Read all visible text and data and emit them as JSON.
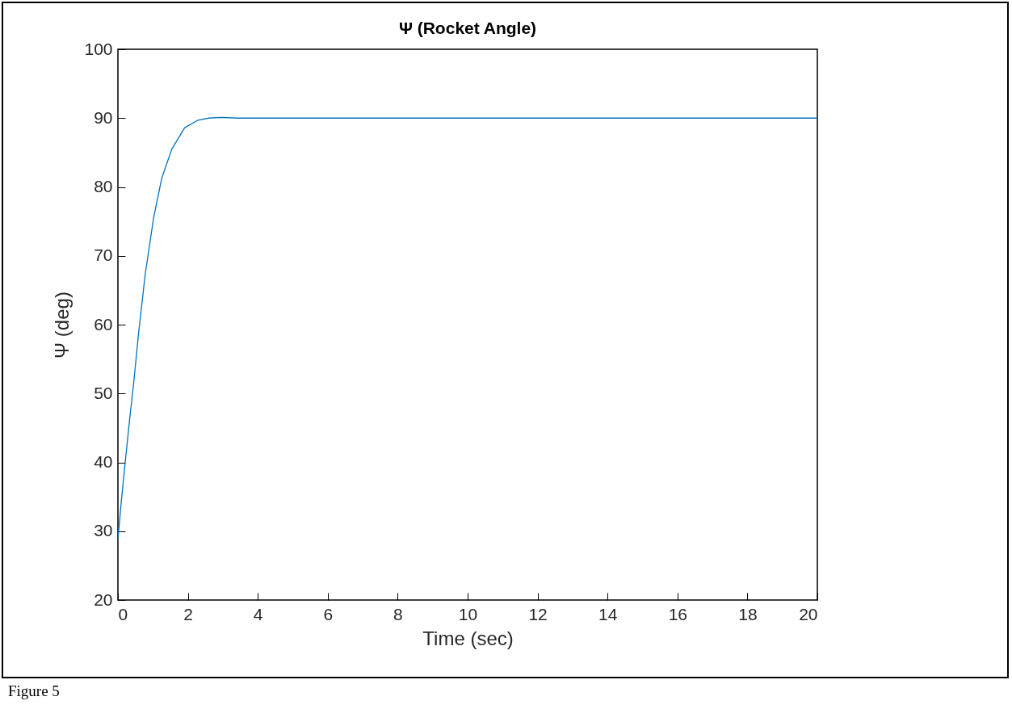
{
  "chart_data": {
    "type": "line",
    "title": "Ψ (Rocket Angle)",
    "xlabel": "Time (sec)",
    "ylabel": "Ψ (deg)",
    "annotations": [
      "Figure 5"
    ],
    "x": [
      0,
      0.1,
      0.21,
      0.33,
      0.45,
      0.59,
      0.78,
      1.02,
      1.25,
      1.54,
      1.91,
      2.29,
      2.6,
      2.95,
      3.4,
      3.9,
      5,
      10,
      15,
      20
    ],
    "series": [
      {
        "color": "#0072bd",
        "values": [
          28.8,
          34.5,
          40.1,
          46,
          51.5,
          58.7,
          67.3,
          75.5,
          81.2,
          85.5,
          88.6,
          89.7,
          90,
          90.1,
          90,
          90,
          90,
          90,
          90,
          90
        ]
      }
    ],
    "xlim": [
      0,
      20
    ],
    "ylim": [
      20,
      100
    ],
    "xticks": [
      0,
      2,
      4,
      6,
      8,
      10,
      12,
      14,
      16,
      18,
      20
    ],
    "yticks": [
      20,
      30,
      40,
      50,
      60,
      70,
      80,
      90,
      100
    ],
    "grid": false,
    "marker": "none",
    "line_style": "solid"
  }
}
